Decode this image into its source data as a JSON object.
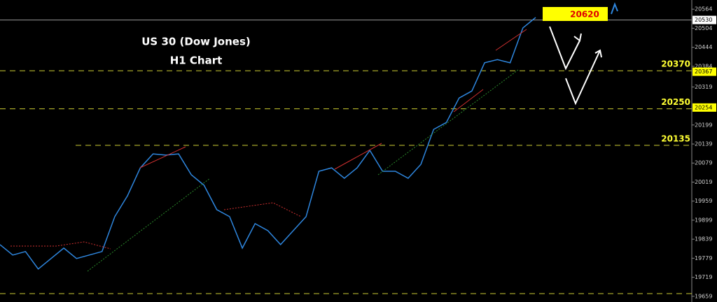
{
  "chart_data": {
    "type": "line",
    "title": "US 30 (Dow Jones)",
    "subtitle": "H1 Chart",
    "color": "#2e86de",
    "values": [
      19822,
      19789,
      19800,
      19745,
      19778,
      19811,
      19778,
      19789,
      19800,
      19910,
      19976,
      20064,
      20108,
      20104,
      20108,
      20042,
      20009,
      19932,
      19910,
      19811,
      19888,
      19866,
      19822,
      19866,
      19910,
      20053,
      20064,
      20031,
      20064,
      20119,
      20053,
      20053,
      20031,
      20075,
      20185,
      20207,
      20284,
      20306,
      20395,
      20405,
      20395,
      20505,
      20538
    ],
    "ylim": [
      19641,
      20593
    ],
    "yticks": [
      19659,
      19719,
      19779,
      19839,
      19899,
      19959,
      20019,
      20079,
      20139,
      20199,
      20319,
      20384,
      20444,
      20504,
      20564
    ],
    "current_price": 20530,
    "marked_levels": [
      20367,
      20254
    ],
    "levels": [
      20370,
      20250,
      20135
    ],
    "target": "20620"
  }
}
